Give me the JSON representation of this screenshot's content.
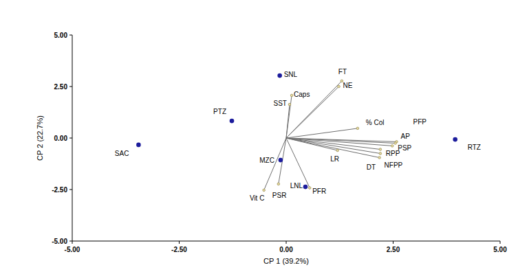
{
  "chart_data": {
    "type": "biplot",
    "x_label": "CP 1 (39.2%)",
    "y_label": "CP 2 (22.7%)",
    "xlim": [
      -5,
      5
    ],
    "ylim": [
      -5,
      5
    ],
    "xticks": [
      {
        "value": -5,
        "label": "-5.00"
      },
      {
        "value": -2.5,
        "label": "-2.50"
      },
      {
        "value": 0,
        "label": "0.00"
      },
      {
        "value": 2.5,
        "label": "2.50"
      },
      {
        "value": 5,
        "label": "5.00"
      }
    ],
    "yticks": [
      {
        "value": -5,
        "label": "-5.00"
      },
      {
        "value": -2.5,
        "label": "-2.50"
      },
      {
        "value": 0,
        "label": "0.00"
      },
      {
        "value": 2.5,
        "label": "2.50"
      },
      {
        "value": 5,
        "label": "5.00"
      }
    ],
    "grid": false,
    "points": {
      "labels": [
        "SAC",
        "PTZ",
        "SNL",
        "MZC",
        "LNL",
        "RTZ"
      ],
      "x": [
        -3.45,
        -1.27,
        -0.15,
        -0.13,
        0.45,
        3.95
      ],
      "y": [
        -0.33,
        0.83,
        3.03,
        -1.07,
        -2.37,
        -0.07
      ],
      "color": "#1c1c9c",
      "marker": "circle"
    },
    "vectors": {
      "labels": [
        "FT",
        "NE",
        "Caps",
        "SST",
        "% Col",
        "PFP",
        "AP",
        "PSP",
        "RPP",
        "DT",
        "NFPP",
        "LR",
        "PFR",
        "Vit C",
        "PSR"
      ],
      "x": [
        1.3,
        1.23,
        0.13,
        0.08,
        1.67,
        2.58,
        2.55,
        2.48,
        2.2,
        2.2,
        2.18,
        1.2,
        0.55,
        -0.52,
        -0.18
      ],
      "y": [
        2.77,
        2.5,
        2.07,
        1.63,
        0.47,
        -0.18,
        -0.25,
        -0.38,
        -0.55,
        -0.75,
        -0.95,
        -0.6,
        -2.42,
        -2.53,
        -2.23
      ],
      "color": "#6e6e6e",
      "marker": "circle"
    }
  }
}
